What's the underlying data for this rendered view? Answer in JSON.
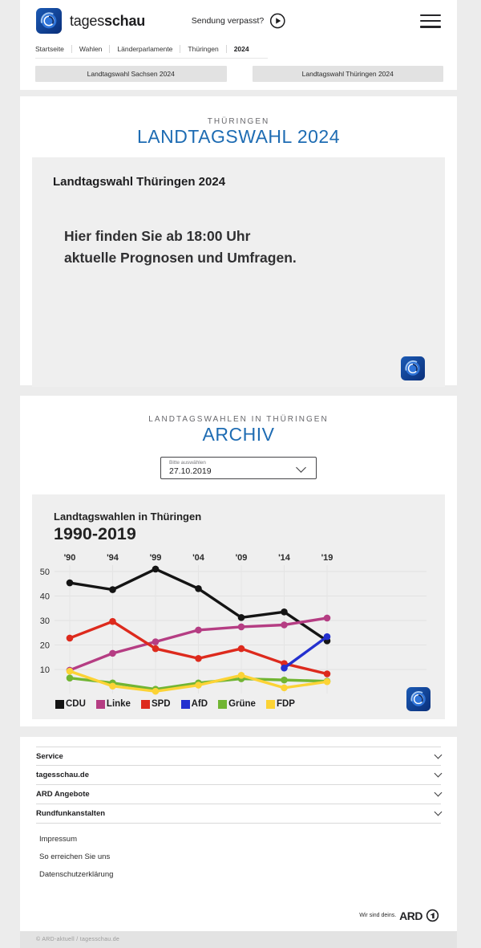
{
  "header": {
    "brand_regular": "tages",
    "brand_bold": "schau",
    "sendung_verpasst": "Sendung verpasst?",
    "breadcrumb": [
      "Startseite",
      "Wahlen",
      "Länderparlamente",
      "Thüringen",
      "2024"
    ],
    "quick_links": [
      "Landtagswahl Sachsen 2024",
      "Landtagswahl Thüringen 2024"
    ]
  },
  "main": {
    "kicker": "THÜRINGEN",
    "title": "LANDTAGSWAHL 2024",
    "teaser": {
      "heading": "Landtagswahl Thüringen 2024",
      "message_line1": "Hier finden Sie ab 18:00 Uhr",
      "message_line2": "aktuelle Prognosen und Umfragen."
    }
  },
  "archive": {
    "kicker": "LANDTAGSWAHLEN IN THÜRINGEN",
    "title": "ARCHIV",
    "select": {
      "label": "Bitte auswählen",
      "value": "27.10.2019"
    }
  },
  "chart_data": {
    "type": "line",
    "title": "Landtagswahlen in Thüringen",
    "subtitle": "1990-2019",
    "x_tick_labels": [
      "'90",
      "'94",
      "'99",
      "'04",
      "'09",
      "'14",
      "'19"
    ],
    "x_values": [
      1990,
      1994,
      1999,
      2004,
      2009,
      2014,
      2019
    ],
    "y_ticks": [
      10,
      20,
      30,
      40,
      50
    ],
    "ylim": [
      0,
      55
    ],
    "grid": true,
    "legend_position": "bottom",
    "series": [
      {
        "name": "CDU",
        "color": "#141414",
        "values": [
          45.4,
          42.6,
          51.0,
          43.0,
          31.2,
          33.5,
          21.7
        ]
      },
      {
        "name": "Linke",
        "color": "#b53d83",
        "values": [
          9.7,
          16.6,
          21.3,
          26.1,
          27.4,
          28.2,
          31.0
        ]
      },
      {
        "name": "SPD",
        "color": "#dd2a1d",
        "values": [
          22.8,
          29.6,
          18.5,
          14.5,
          18.5,
          12.4,
          8.2
        ]
      },
      {
        "name": "AfD",
        "color": "#2330cf",
        "values": [
          null,
          null,
          null,
          null,
          null,
          10.6,
          23.4
        ]
      },
      {
        "name": "Grüne",
        "color": "#71b533",
        "values": [
          6.5,
          4.5,
          1.9,
          4.5,
          6.2,
          5.7,
          5.2
        ]
      },
      {
        "name": "FDP",
        "color": "#fcd335",
        "values": [
          9.3,
          3.2,
          1.1,
          3.6,
          7.6,
          2.5,
          5.0
        ]
      }
    ]
  },
  "footer": {
    "accordion": [
      "Service",
      "tagesschau.de",
      "ARD Angebote",
      "Rundfunkanstalten"
    ],
    "links": [
      "Impressum",
      "So erreichen Sie uns",
      "Datenschutzerklärung"
    ],
    "ard_claim": "Wir sind deins.",
    "ard_brand": "ARD",
    "copyright": "© ARD-aktuell / tagesschau.de"
  }
}
